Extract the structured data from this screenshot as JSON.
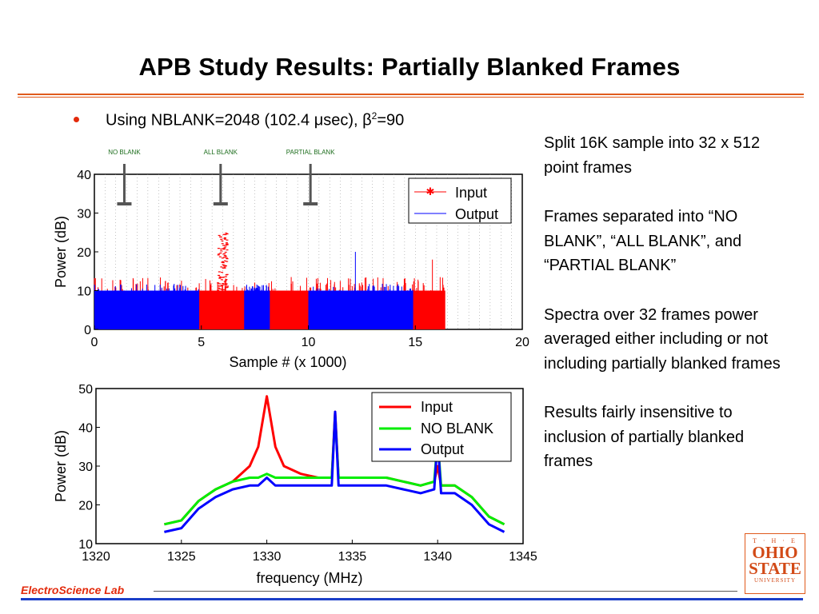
{
  "slide": {
    "title": "APB Study Results: Partially Blanked Frames",
    "bullet": {
      "pre": "Using NBLANK=2048 (102.4 ",
      "mu": "μ",
      "mid": "sec), ",
      "beta": "β",
      "sup": "2",
      "post": "=90"
    },
    "notes": [
      "Split 16K sample into 32 x 512 point frames",
      "Frames separated into “NO BLANK”, “ALL BLANK”, and “PARTIAL BLANK”",
      "Spectra over 32 frames power averaged either including or not including partially blanked frames",
      "Results fairly insensitive to inclusion of partially blanked frames"
    ],
    "footer_lab": "ElectroScience Lab",
    "logo": {
      "the": "T · H · E",
      "line1": "OHIO",
      "line2": "STATE",
      "univ": "UNIVERSITY"
    }
  },
  "colors": {
    "accent": "#e05a1c",
    "red": "#ff0000",
    "blue": "#0000ff",
    "green": "#00ee00",
    "footer_blue": "#1a3ec8"
  },
  "chart_data": [
    {
      "type": "scatter",
      "xlabel": "Sample # (x 1000)",
      "ylabel": "Power (dB)",
      "xlim": [
        0,
        20
      ],
      "ylim": [
        0,
        40
      ],
      "xticks": [
        0,
        5,
        10,
        15,
        20
      ],
      "yticks": [
        0,
        10,
        20,
        30,
        40
      ],
      "annotations": [
        {
          "text": "NO BLANK",
          "x": 1.4
        },
        {
          "text": "ALL BLANK",
          "x": 5.9
        },
        {
          "text": "PARTIAL BLANK",
          "x": 10.1
        }
      ],
      "series": [
        {
          "name": "Input",
          "color": "#ff0000",
          "marker": "*",
          "x_range": [
            0,
            16.4
          ],
          "baseline_max": 10,
          "spike_max": 18,
          "burst": {
            "x_range": [
              5.7,
              6.2
            ],
            "y_range": [
              10,
              25
            ]
          }
        },
        {
          "name": "Output",
          "color": "#0000ff",
          "marker": "none",
          "segments": [
            [
              0,
              4.9
            ],
            [
              7.0,
              8.2
            ],
            [
              10.0,
              14.9
            ]
          ],
          "baseline_max": 10,
          "spike": {
            "x": 12.2,
            "y": 20
          }
        }
      ],
      "legend": "top-right",
      "grid": "vertical dotted"
    },
    {
      "type": "line",
      "xlabel": "frequency (MHz)",
      "ylabel": "Power (dB)",
      "xlim": [
        1320,
        1345
      ],
      "ylim": [
        10,
        50
      ],
      "xticks": [
        1320,
        1325,
        1330,
        1335,
        1340,
        1345
      ],
      "yticks": [
        10,
        20,
        30,
        40,
        50
      ],
      "x": [
        1324,
        1325,
        1326,
        1327,
        1328,
        1329,
        1329.5,
        1330,
        1330.5,
        1331,
        1332,
        1333,
        1333.8,
        1334,
        1334.2,
        1335,
        1336,
        1337,
        1338,
        1339,
        1339.8,
        1340,
        1340.2,
        1341,
        1342,
        1343,
        1343.9
      ],
      "series": [
        {
          "name": "Input",
          "color": "#ff0000",
          "values": [
            15,
            16,
            21,
            24,
            26,
            30,
            35,
            48,
            35,
            30,
            28,
            27,
            27,
            44,
            27,
            27,
            27,
            27,
            26,
            25,
            26,
            30,
            25,
            25,
            22,
            17,
            15
          ]
        },
        {
          "name": "NO BLANK",
          "color": "#00ee00",
          "values": [
            15,
            16,
            21,
            24,
            26,
            27,
            27,
            28,
            27,
            27,
            27,
            27,
            27,
            43,
            27,
            27,
            27,
            27,
            26,
            25,
            26,
            37,
            25,
            25,
            22,
            17,
            15
          ]
        },
        {
          "name": "Output",
          "color": "#0000ff",
          "values": [
            13,
            14,
            19,
            22,
            24,
            25,
            25,
            27,
            25,
            25,
            25,
            25,
            25,
            44,
            25,
            25,
            25,
            25,
            24,
            23,
            24,
            37,
            23,
            23,
            20,
            15,
            13
          ]
        }
      ],
      "legend": "top-right"
    }
  ]
}
